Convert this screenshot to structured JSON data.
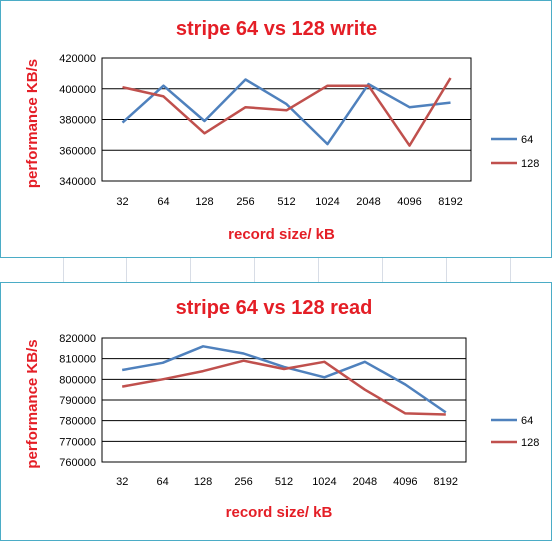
{
  "chart_data": [
    {
      "type": "line",
      "title": "stripe 64 vs 128 write",
      "xlabel": "record size/ kB",
      "ylabel": "performance KB/s",
      "categories": [
        "32",
        "64",
        "128",
        "256",
        "512",
        "1024",
        "2048",
        "4096",
        "8192"
      ],
      "ylim": [
        340000,
        420000
      ],
      "yticks": [
        "340000",
        "360000",
        "380000",
        "400000",
        "420000"
      ],
      "grid": true,
      "legend_position": "right",
      "series": [
        {
          "name": "64",
          "color": "#4f81bd",
          "values": [
            378000,
            402000,
            379000,
            406000,
            390000,
            364000,
            403000,
            388000,
            391000
          ]
        },
        {
          "name": "128",
          "color": "#c0504d",
          "values": [
            401000,
            395000,
            371000,
            388000,
            386000,
            402000,
            402000,
            363000,
            407000
          ]
        }
      ]
    },
    {
      "type": "line",
      "title": "stripe 64 vs 128 read",
      "xlabel": "record size/ kB",
      "ylabel": "performance KB/s",
      "categories": [
        "32",
        "64",
        "128",
        "256",
        "512",
        "1024",
        "2048",
        "4096",
        "8192"
      ],
      "ylim": [
        760000,
        820000
      ],
      "yticks": [
        "760000",
        "770000",
        "780000",
        "790000",
        "800000",
        "810000",
        "820000"
      ],
      "grid": true,
      "legend_position": "right",
      "series": [
        {
          "name": "64",
          "color": "#4f81bd",
          "values": [
            804500,
            808000,
            816000,
            812500,
            806000,
            801000,
            808500,
            797500,
            784000
          ]
        },
        {
          "name": "128",
          "color": "#c0504d",
          "values": [
            796500,
            800000,
            804000,
            809000,
            805000,
            808500,
            795000,
            783500,
            783000
          ]
        }
      ]
    }
  ]
}
